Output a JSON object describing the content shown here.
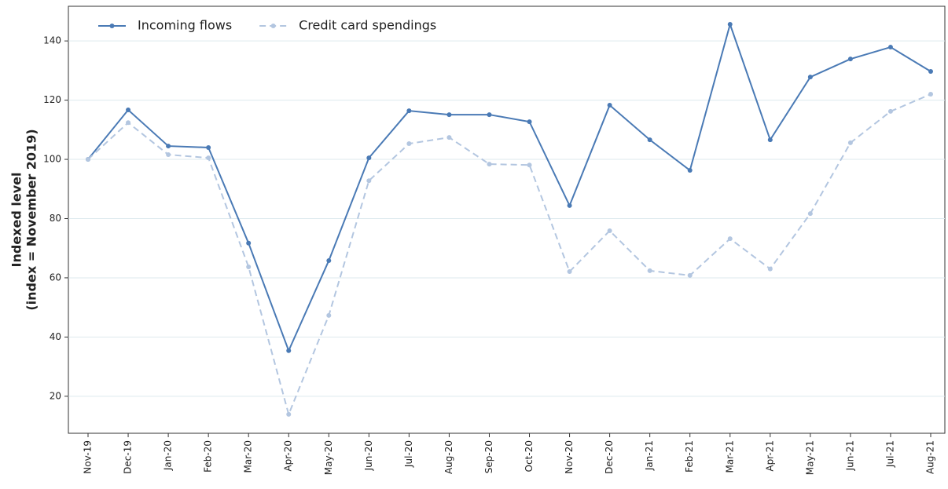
{
  "chart_data": {
    "type": "line",
    "ylabel": [
      "Indexed level",
      "(index = November 2019)"
    ],
    "categories": [
      "Nov-19",
      "Dec-19",
      "Jan-20",
      "Feb-20",
      "Mar-20",
      "Apr-20",
      "May-20",
      "Jun-20",
      "Jul-20",
      "Aug-20",
      "Sep-20",
      "Oct-20",
      "Nov-20",
      "Dec-20",
      "Jan-21",
      "Feb-21",
      "Mar-21",
      "Apr-21",
      "May-21",
      "Jun-21",
      "Jul-21",
      "Aug-21"
    ],
    "series": [
      {
        "name": "Incoming flows",
        "color": "#4a7ab5",
        "linestyle": "solid",
        "values": [
          100,
          116.7,
          104.5,
          104.0,
          71.7,
          35.4,
          65.8,
          100.5,
          116.4,
          115.1,
          115.1,
          112.7,
          84.4,
          118.3,
          106.6,
          96.3,
          145.6,
          106.6,
          127.8,
          133.9,
          137.9,
          129.7
        ]
      },
      {
        "name": "Credit card spendings",
        "color": "#b3c6e0",
        "linestyle": "dashed",
        "values": [
          100,
          112.4,
          101.6,
          100.5,
          63.7,
          13.9,
          47.3,
          92.8,
          105.3,
          107.4,
          98.4,
          98.1,
          62.1,
          75.9,
          62.4,
          60.8,
          73.2,
          63.0,
          81.7,
          105.6,
          116.2,
          122.0
        ]
      }
    ],
    "ylim": [
      7.5,
      151.7
    ],
    "yticks": [
      20,
      40,
      60,
      80,
      100,
      120,
      140
    ],
    "grid": true,
    "legend": "upper left"
  }
}
